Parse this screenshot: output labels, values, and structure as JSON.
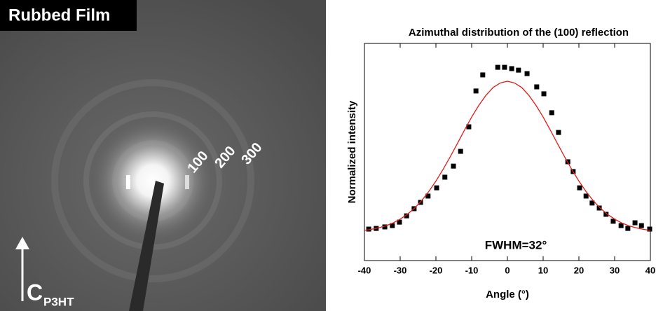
{
  "image": {
    "label": "Rubbed Film",
    "ring_labels": [
      "100",
      "200",
      "300"
    ],
    "axis_letter": "C",
    "axis_subscript": "P3HT"
  },
  "chart_data": {
    "type": "scatter",
    "title": "Azimuthal distribution of the (100) reflection",
    "x_label": "Angle (°)",
    "y_label": "Normalized intensity",
    "annotation": "FWHM=32°",
    "xlim": [
      -40,
      40
    ],
    "xticks": [
      -40,
      -30,
      -20,
      -10,
      0,
      10,
      20,
      30,
      40
    ],
    "ylim": [
      0,
      1
    ],
    "series": [
      {
        "type": "scatter",
        "color": "#000000",
        "x": [
          -38.8,
          -36.7,
          -34.3,
          -32.2,
          -30.2,
          -28.2,
          -26.1,
          -24.3,
          -22.2,
          -19.8,
          -17.5,
          -15.1,
          -13.1,
          -10.8,
          -8.8,
          -6.9,
          -2.7,
          -0.8,
          1.2,
          3.1,
          5.5,
          8.2,
          10.2,
          12.4,
          14.3,
          16.9,
          18.4,
          20.2,
          22.0,
          23.7,
          25.7,
          27.6,
          29.6,
          31.8,
          33.7,
          35.7,
          37.5,
          39.8
        ],
        "values": [
          0.145,
          0.148,
          0.155,
          0.161,
          0.177,
          0.206,
          0.239,
          0.268,
          0.297,
          0.335,
          0.384,
          0.435,
          0.503,
          0.616,
          0.781,
          0.855,
          0.89,
          0.89,
          0.884,
          0.877,
          0.861,
          0.8,
          0.768,
          0.681,
          0.59,
          0.455,
          0.41,
          0.335,
          0.297,
          0.265,
          0.242,
          0.213,
          0.181,
          0.161,
          0.148,
          0.174,
          0.161,
          0.145
        ]
      },
      {
        "type": "line",
        "color": "#e41a1c",
        "x": [
          -40,
          -38,
          -36,
          -34,
          -32,
          -30,
          -28,
          -26,
          -24,
          -22,
          -20,
          -18,
          -16,
          -14,
          -12,
          -10,
          -8,
          -6,
          -4,
          -2,
          0,
          2,
          4,
          6,
          8,
          10,
          12,
          14,
          16,
          18,
          20,
          22,
          24,
          26,
          28,
          30,
          32,
          34,
          36,
          38,
          40
        ],
        "values": [
          0.139,
          0.144,
          0.151,
          0.16,
          0.173,
          0.191,
          0.213,
          0.241,
          0.276,
          0.318,
          0.366,
          0.42,
          0.478,
          0.539,
          0.601,
          0.661,
          0.715,
          0.761,
          0.797,
          0.818,
          0.826,
          0.818,
          0.797,
          0.761,
          0.715,
          0.661,
          0.601,
          0.539,
          0.478,
          0.42,
          0.366,
          0.318,
          0.276,
          0.241,
          0.213,
          0.191,
          0.173,
          0.16,
          0.151,
          0.144,
          0.139
        ]
      }
    ]
  }
}
